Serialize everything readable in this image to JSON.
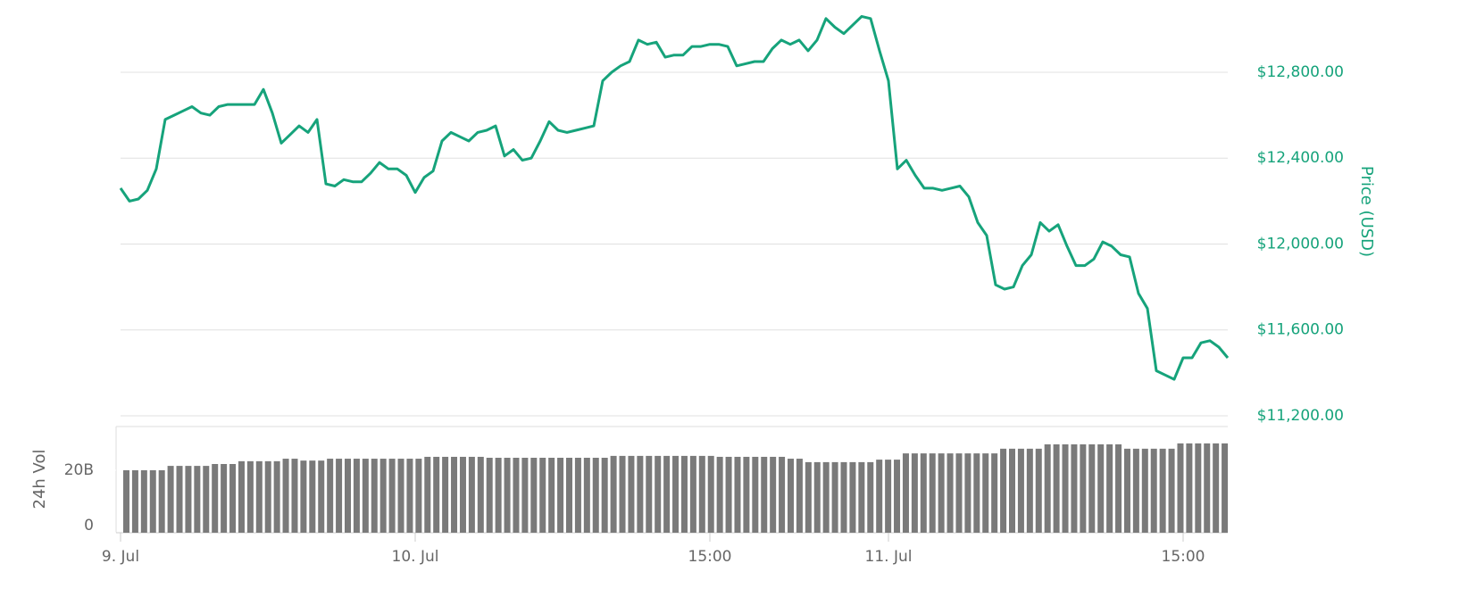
{
  "chart_data": [
    {
      "type": "line",
      "ylabel": "Price (USD)",
      "color": "#16a37b",
      "values": [
        12260,
        12200,
        12210,
        12250,
        12350,
        12580,
        12600,
        12620,
        12640,
        12610,
        12600,
        12640,
        12650,
        12650,
        12650,
        12650,
        12720,
        12610,
        12470,
        12510,
        12550,
        12520,
        12580,
        12280,
        12270,
        12300,
        12290,
        12290,
        12330,
        12380,
        12350,
        12350,
        12320,
        12240,
        12310,
        12340,
        12480,
        12520,
        12500,
        12480,
        12520,
        12530,
        12550,
        12410,
        12440,
        12390,
        12400,
        12480,
        12570,
        12530,
        12520,
        12530,
        12540,
        12550,
        12760,
        12800,
        12830,
        12850,
        12950,
        12930,
        12940,
        12870,
        12880,
        12880,
        12920,
        12920,
        12930,
        12930,
        12920,
        12830,
        12840,
        12850,
        12850,
        12910,
        12950,
        12930,
        12950,
        12900,
        12950,
        13050,
        13010,
        12980,
        13020,
        13060,
        13050,
        12900,
        12760,
        12350,
        12390,
        12320,
        12260,
        12260,
        12250,
        12260,
        12270,
        12220,
        12100,
        12040,
        11810,
        11790,
        11800,
        11900,
        11950,
        12100,
        12060,
        12090,
        11990,
        11900,
        11900,
        11930,
        12010,
        11990,
        11950,
        11940,
        11770,
        11700,
        11410,
        11390,
        11370,
        11470,
        11470,
        11540,
        11550,
        11520,
        11470
      ],
      "ylim": [
        11200,
        13100
      ],
      "yticks": [
        {
          "value": 11200,
          "label": "$11,200.00"
        },
        {
          "value": 11600,
          "label": "$11,600.00"
        },
        {
          "value": 12000,
          "label": "$12,000.00"
        },
        {
          "value": 12400,
          "label": "$12,400.00"
        },
        {
          "value": 12800,
          "label": "$12,800.00"
        }
      ],
      "xlim": [
        0,
        124
      ],
      "xticks": [
        {
          "value": 0,
          "label": "9. Jul"
        },
        {
          "value": 33,
          "label": "10. Jul"
        },
        {
          "value": 66,
          "label": "15:00"
        },
        {
          "value": 86,
          "label": "11. Jul"
        },
        {
          "value": 119,
          "label": "15:00"
        }
      ],
      "grid": true
    },
    {
      "type": "bar",
      "ylabel": "24h Vol",
      "color": "#7a7a7a",
      "values": [
        20.0,
        20.0,
        20.0,
        20.0,
        20.0,
        21.4,
        21.4,
        21.4,
        21.4,
        21.4,
        22.0,
        22.0,
        22.0,
        22.9,
        22.9,
        22.9,
        22.9,
        22.9,
        23.7,
        23.7,
        23.1,
        23.1,
        23.1,
        23.7,
        23.7,
        23.7,
        23.7,
        23.7,
        23.7,
        23.7,
        23.7,
        23.7,
        23.7,
        23.7,
        24.3,
        24.3,
        24.3,
        24.3,
        24.3,
        24.3,
        24.3,
        24.0,
        24.0,
        24.0,
        24.0,
        24.0,
        24.0,
        24.0,
        24.0,
        24.0,
        24.0,
        24.0,
        24.0,
        24.0,
        24.0,
        24.6,
        24.6,
        24.6,
        24.6,
        24.6,
        24.6,
        24.6,
        24.6,
        24.6,
        24.6,
        24.6,
        24.6,
        24.3,
        24.3,
        24.3,
        24.3,
        24.3,
        24.3,
        24.3,
        24.3,
        23.7,
        23.7,
        22.6,
        22.6,
        22.6,
        22.6,
        22.6,
        22.6,
        22.6,
        22.6,
        23.4,
        23.4,
        23.4,
        25.4,
        25.4,
        25.4,
        25.4,
        25.4,
        25.4,
        25.4,
        25.4,
        25.4,
        25.4,
        25.4,
        26.9,
        26.9,
        26.9,
        26.9,
        26.9,
        28.3,
        28.3,
        28.3,
        28.3,
        28.3,
        28.3,
        28.3,
        28.3,
        28.3,
        26.9,
        26.9,
        26.9,
        26.9,
        26.9,
        26.9,
        28.6,
        28.6,
        28.6,
        28.6,
        28.6,
        28.6
      ],
      "ylim": [
        0,
        34
      ],
      "yticks": [
        0,
        {
          "value": 20,
          "label": "20B"
        }
      ]
    }
  ]
}
